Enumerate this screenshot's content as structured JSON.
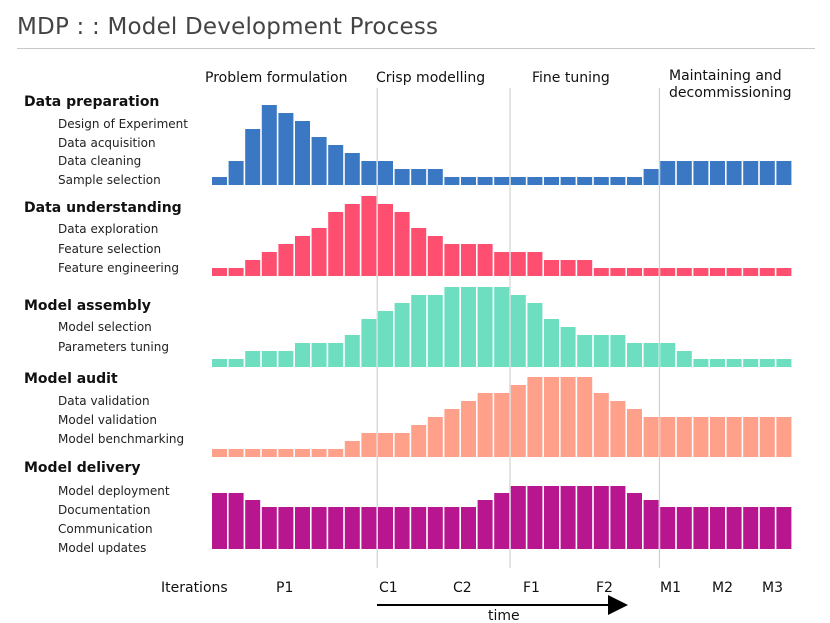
{
  "title": "MDP  : : Model Development Process",
  "phases": [
    "Problem formulation",
    "Crisp modelling",
    "Fine tuning",
    "Maintaining and",
    "decommissioning"
  ],
  "categories": [
    {
      "name": "Data preparation",
      "color": "#3a78c4",
      "items": [
        "Design of Experiment",
        "Data acquisition",
        "Data cleaning",
        "Sample selection"
      ]
    },
    {
      "name": "Data understanding",
      "color": "#ff4f70",
      "items": [
        "Data exploration",
        "Feature selection",
        "Feature engineering"
      ]
    },
    {
      "name": "Model assembly",
      "color": "#6ddfc0",
      "items": [
        "Model selection",
        "Parameters tuning"
      ]
    },
    {
      "name": "Model audit",
      "color": "#ffa08a",
      "items": [
        "Data validation",
        "Model validation",
        "Model benchmarking"
      ]
    },
    {
      "name": "Model delivery",
      "color": "#b8168f",
      "items": [
        "Model deployment",
        "Documentation",
        "Communication",
        "Model updates"
      ]
    }
  ],
  "iterations_label": "Iterations",
  "iterations": [
    "P1",
    "C1",
    "C2",
    "F1",
    "F2",
    "M1",
    "M2",
    "M3"
  ],
  "time_label": "time",
  "chart_data": {
    "type": "bar",
    "title": "MDP : : Model Development Process",
    "xlabel": "time",
    "categories_count": 35,
    "phases": [
      "Problem formulation",
      "Crisp modelling",
      "Fine tuning",
      "Maintaining and decommissioning"
    ],
    "phase_boundaries_after_bar": [
      9,
      17,
      26
    ],
    "series": [
      {
        "name": "Data preparation",
        "values": [
          10,
          30,
          70,
          100,
          90,
          80,
          60,
          50,
          40,
          30,
          30,
          20,
          20,
          20,
          10,
          10,
          10,
          10,
          10,
          10,
          10,
          10,
          10,
          10,
          10,
          10,
          20,
          30,
          30,
          30,
          30,
          30,
          30,
          30,
          30
        ]
      },
      {
        "name": "Data understanding",
        "values": [
          10,
          10,
          20,
          30,
          40,
          50,
          60,
          80,
          90,
          100,
          90,
          80,
          60,
          50,
          40,
          40,
          40,
          30,
          30,
          30,
          20,
          20,
          20,
          10,
          10,
          10,
          10,
          10,
          10,
          10,
          10,
          10,
          10,
          10,
          10
        ]
      },
      {
        "name": "Model assembly",
        "values": [
          10,
          10,
          20,
          20,
          20,
          30,
          30,
          30,
          40,
          60,
          70,
          80,
          90,
          90,
          100,
          100,
          100,
          100,
          90,
          80,
          60,
          50,
          40,
          40,
          40,
          30,
          30,
          30,
          20,
          10,
          10,
          10,
          10,
          10,
          10
        ]
      },
      {
        "name": "Model audit",
        "values": [
          10,
          10,
          10,
          10,
          10,
          10,
          10,
          10,
          20,
          30,
          30,
          30,
          40,
          50,
          60,
          70,
          80,
          80,
          90,
          100,
          100,
          100,
          100,
          80,
          70,
          60,
          50,
          50,
          50,
          50,
          50,
          50,
          50,
          50,
          50
        ]
      },
      {
        "name": "Model delivery",
        "values": [
          80,
          80,
          70,
          60,
          60,
          60,
          60,
          60,
          60,
          60,
          60,
          60,
          60,
          60,
          60,
          60,
          70,
          80,
          90,
          90,
          90,
          90,
          90,
          90,
          90,
          80,
          70,
          60,
          60,
          60,
          60,
          60,
          60,
          60,
          60
        ]
      }
    ]
  }
}
